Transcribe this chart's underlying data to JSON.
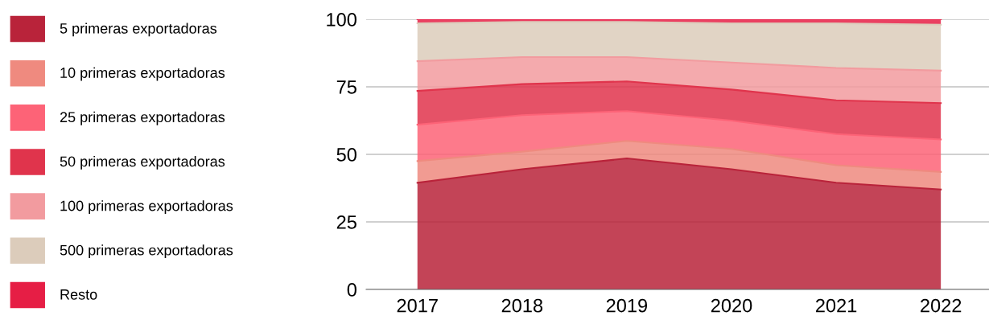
{
  "chart_data": {
    "type": "area",
    "stacked": true,
    "categories": [
      "2017",
      "2018",
      "2019",
      "2020",
      "2021",
      "2022"
    ],
    "series": [
      {
        "name": "5 primeras exportadoras",
        "color": "#b9233a",
        "values": [
          39.5,
          44.5,
          48.5,
          44.5,
          39.5,
          37
        ]
      },
      {
        "name": "10 primeras exportadoras",
        "color": "#ef8a7f",
        "values": [
          8,
          6.5,
          6.5,
          7.5,
          6.5,
          6.5
        ]
      },
      {
        "name": "25 primeras exportadoras",
        "color": "#fd6377",
        "values": [
          13.5,
          13.5,
          11,
          10.5,
          11.5,
          12
        ]
      },
      {
        "name": "50 primeras exportadoras",
        "color": "#e0344c",
        "values": [
          12.5,
          11.5,
          11,
          11.5,
          12.5,
          13.5
        ]
      },
      {
        "name": "100 primeras exportadoras",
        "color": "#f29b9f",
        "values": [
          11,
          10,
          9,
          10,
          12,
          12
        ]
      },
      {
        "name": "500 primeras exportadoras",
        "color": "#dcccbb",
        "values": [
          14,
          13,
          13,
          14.5,
          16.5,
          17
        ]
      },
      {
        "name": "Resto",
        "color": "#e61e45",
        "values": [
          1.5,
          1,
          1,
          1.5,
          1.5,
          2
        ]
      }
    ],
    "ylim": [
      0,
      100
    ],
    "yticks": [
      0,
      25,
      50,
      75,
      100
    ],
    "grid": "y",
    "legend": "left"
  }
}
